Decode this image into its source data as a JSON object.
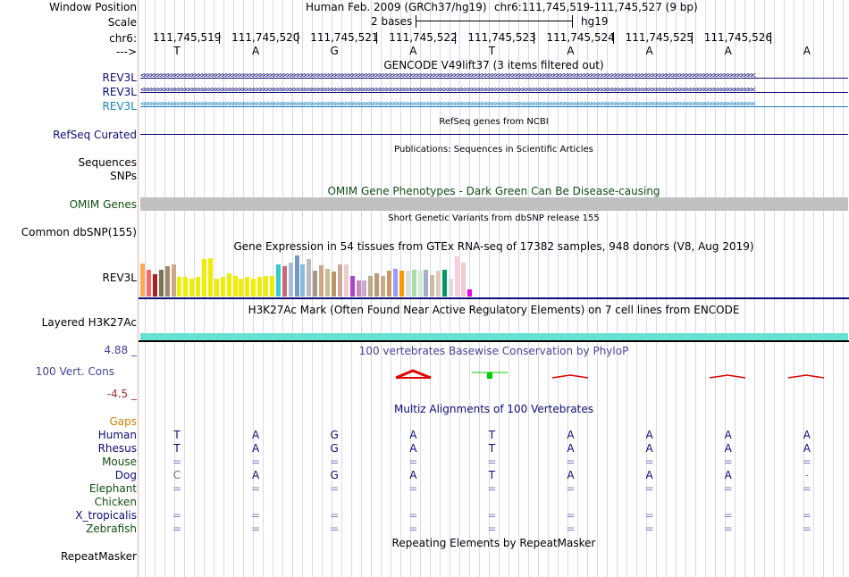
{
  "header": {
    "window_position_label": "Window Position",
    "assembly_text": "Human Feb. 2009 (GRCh37/hg19)",
    "position_text": "chr6:111,745,519-111,745,527 (9 bp)",
    "scale_label": "Scale",
    "scale_value": "2 bases",
    "scale_db": "hg19",
    "chrom_label": "chr6:",
    "strand_label": "--->",
    "coords": [
      "111,745,519",
      "111,745,520",
      "111,745,521",
      "111,745,522",
      "111,745,523",
      "111,745,524",
      "111,745,525",
      "111,745,526"
    ],
    "bases": [
      "T",
      "A",
      "G",
      "A",
      "T",
      "A",
      "A",
      "A",
      "A"
    ]
  },
  "gencode": {
    "title": "GENCODE V49lift37 (3 items filtered out)",
    "genes": [
      {
        "label": "REV3L",
        "color": "#0c0c78"
      },
      {
        "label": "REV3L",
        "color": "#0c0c78"
      },
      {
        "label": "REV3L",
        "color": "#1b7fbf"
      }
    ]
  },
  "refseq": {
    "title": "RefSeq genes from NCBI",
    "label": "RefSeq Curated"
  },
  "pubs": {
    "title": "Publications: Sequences in Scientific Articles",
    "sequences_label": "Sequences",
    "snps_label": "SNPs"
  },
  "omim": {
    "title": "OMIM Gene Phenotypes - Dark Green Can Be Disease-causing",
    "label": "OMIM Genes"
  },
  "dbsnp": {
    "title": "Short Genetic Variants from dbSNP release 155",
    "label": "Common dbSNP(155)"
  },
  "gtex": {
    "title": "Gene Expression in 54 tissues from GTEx RNA-seq of 17382 samples, 948 donors (V8, Aug 2019)",
    "label": "REV3L",
    "tissues": [
      {
        "v": 0.77,
        "c": "#ffaa55"
      },
      {
        "v": 0.62,
        "c": "#ff6666"
      },
      {
        "v": 0.52,
        "c": "#aa2222"
      },
      {
        "v": 0.62,
        "c": "#777755"
      },
      {
        "v": 0.7,
        "c": "#aa8866"
      },
      {
        "v": 0.74,
        "c": "#ccaa88"
      },
      {
        "v": 0.45,
        "c": "#eeee00"
      },
      {
        "v": 0.45,
        "c": "#eeee00"
      },
      {
        "v": 0.42,
        "c": "#eeee00"
      },
      {
        "v": 0.46,
        "c": "#eeee00"
      },
      {
        "v": 0.88,
        "c": "#eeee00"
      },
      {
        "v": 0.9,
        "c": "#eeee00"
      },
      {
        "v": 0.42,
        "c": "#eeee00"
      },
      {
        "v": 0.45,
        "c": "#eeee00"
      },
      {
        "v": 0.55,
        "c": "#eeee00"
      },
      {
        "v": 0.47,
        "c": "#eeee00"
      },
      {
        "v": 0.42,
        "c": "#eeee00"
      },
      {
        "v": 0.45,
        "c": "#eeee00"
      },
      {
        "v": 0.42,
        "c": "#eeee00"
      },
      {
        "v": 0.45,
        "c": "#eeee00"
      },
      {
        "v": 0.47,
        "c": "#eeee00"
      },
      {
        "v": 0.48,
        "c": "#eeee00"
      },
      {
        "v": 0.74,
        "c": "#33cccc"
      },
      {
        "v": 0.7,
        "c": "#cc6677"
      },
      {
        "v": 0.8,
        "c": "#aabbdd"
      },
      {
        "v": 0.95,
        "c": "#7799bb"
      },
      {
        "v": 0.75,
        "c": "#88bbdd"
      },
      {
        "v": 0.88,
        "c": "#bbbbbb"
      },
      {
        "v": 0.6,
        "c": "#aa9988"
      },
      {
        "v": 0.72,
        "c": "#ccaa88"
      },
      {
        "v": 0.65,
        "c": "#ccbb99"
      },
      {
        "v": 0.58,
        "c": "#bb9966"
      },
      {
        "v": 0.75,
        "c": "#ccaa99"
      },
      {
        "v": 0.75,
        "c": "#eecccc"
      },
      {
        "v": 0.47,
        "c": "#aa44cc"
      },
      {
        "v": 0.38,
        "c": "#cc88bb"
      },
      {
        "v": 0.38,
        "c": "#ccaacc"
      },
      {
        "v": 0.47,
        "c": "#bbaa88"
      },
      {
        "v": 0.55,
        "c": "#bb9977"
      },
      {
        "v": 0.47,
        "c": "#ccaa88"
      },
      {
        "v": 0.6,
        "c": "#cc9966"
      },
      {
        "v": 0.65,
        "c": "#9999ff"
      },
      {
        "v": 0.6,
        "c": "#ff9900"
      },
      {
        "v": 0.6,
        "c": "#dddddd"
      },
      {
        "v": 0.62,
        "c": "#aaddaa"
      },
      {
        "v": 0.6,
        "c": "#cceecc"
      },
      {
        "v": 0.62,
        "c": "#aaaacc"
      },
      {
        "v": 0.5,
        "c": "#ccbbaa"
      },
      {
        "v": 0.6,
        "c": "#ddccbb"
      },
      {
        "v": 0.62,
        "c": "#009966"
      },
      {
        "v": 0.42,
        "c": "#dddddd"
      },
      {
        "v": 0.94,
        "c": "#ffccdd"
      },
      {
        "v": 0.8,
        "c": "#eecccc"
      },
      {
        "v": 0.16,
        "c": "#ee00ee"
      }
    ]
  },
  "h3k27ac": {
    "title": "H3K27Ac Mark (Often Found Near Active Regulatory Elements) on 7 cell lines from ENCODE",
    "label": "Layered H3K27Ac"
  },
  "cons": {
    "title": "100 vertebrates Basewise Conservation by PhyloP",
    "label": "100 Vert. Cons",
    "max_label": "4.88 _",
    "min_label": "-4.5 _"
  },
  "multiz": {
    "title": "Multiz Alignments of 100 Vertebrates",
    "gaps_label": "Gaps",
    "species": [
      {
        "name": "Human",
        "color": "#0c0c78",
        "row": [
          "T",
          "A",
          "G",
          "A",
          "T",
          "A",
          "A",
          "A",
          "A"
        ]
      },
      {
        "name": "Rhesus",
        "color": "#0c0c78",
        "row": [
          "T",
          "A",
          "G",
          "A",
          "T",
          "A",
          "A",
          "A",
          "A"
        ]
      },
      {
        "name": "Mouse",
        "color": "#105010",
        "row": [
          "=",
          "=",
          "=",
          "=",
          "=",
          "=",
          "=",
          "=",
          "="
        ]
      },
      {
        "name": "Dog",
        "color": "#0c0c78",
        "row": [
          "C",
          "A",
          "G",
          "A",
          "T",
          "A",
          "A",
          "A",
          "-"
        ]
      },
      {
        "name": "Elephant",
        "color": "#105010",
        "row": [
          "=",
          "=",
          "=",
          "=",
          "=",
          "=",
          "=",
          "=",
          "="
        ]
      },
      {
        "name": "Chicken",
        "color": "#105010",
        "row": [
          "",
          "",
          "",
          "",
          "",
          "",
          "",
          "",
          ""
        ]
      },
      {
        "name": "X_tropicalis",
        "color": "#0c0c78",
        "row": [
          "=",
          "=",
          "=",
          "=",
          "=",
          "=",
          "=",
          "=",
          "="
        ]
      },
      {
        "name": "Zebrafish",
        "color": "#105010",
        "row": [
          "=",
          "=",
          "=",
          "=",
          "=",
          "=",
          "=",
          "=",
          "="
        ]
      }
    ]
  },
  "repeat": {
    "title": "Repeating Elements by RepeatMasker",
    "label": "RepeatMasker"
  },
  "colors": {
    "accent": "#0c0c78",
    "omim_green": "#105010",
    "h3k27ac": "#66e0d0",
    "conservation": "#444499"
  }
}
